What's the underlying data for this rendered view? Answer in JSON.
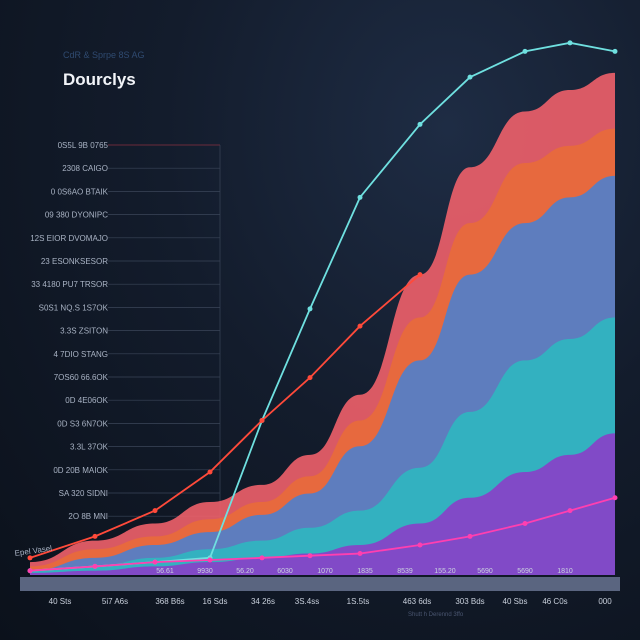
{
  "header": {
    "subtitle": "CdR & Sprpe 8S AG",
    "title": "Dourclys"
  },
  "watermark": "Shutt h Derennd 3ffo",
  "chart_data": {
    "type": "area",
    "title": "Dourclys",
    "subtitle": "CdR & Sprpe 8S AG",
    "xlabel": "",
    "ylabel": "",
    "corner_label": "Epel Vasel",
    "categories": [
      "40 Sts",
      "5i7 A6s",
      "368 B6s",
      "16 Sds",
      "34 26s",
      "3S.4ss",
      "1S.5ts",
      "463 6ds",
      "303 Bds",
      "40 Sbs",
      "46 C0s",
      "000"
    ],
    "y_tick_labels": [
      "0S5L 9B 0765",
      "2308 CAIGO",
      "0 0S6AO BTAIK",
      "09 380 DYONIPC",
      "12S EIOR DVOMAJO",
      "23 ESONKSESOR",
      "33 4180 PU7 TRSOR",
      "S0S1 NQ.S 1S7OK",
      "3.3S ZSITON",
      "4 7DIO STANG",
      "7OS60 66.6OK",
      "0D 4E06OK",
      "0D S3 6N7OK",
      "3.3L 37OK",
      "0D 20B MAIOK",
      "SA 320 SIDNI",
      "2O 8B MNI"
    ],
    "band_labels": [
      "56.61",
      "9930",
      "56.20",
      "6030",
      "1070",
      "1835",
      "8539",
      "155.20",
      "5690",
      "5690",
      "1810"
    ],
    "ylim": [
      0,
      120
    ],
    "grid": true,
    "legend": "none",
    "areas": [
      {
        "color": "#f0606a",
        "values": [
          3,
          8,
          12,
          17,
          21,
          28,
          42,
          70,
          95,
          108,
          113,
          117
        ]
      },
      {
        "color": "#e86a3a",
        "values": [
          2,
          6,
          9,
          13,
          17,
          23,
          36,
          60,
          82,
          96,
          100,
          104
        ]
      },
      {
        "color": "#4f7fcc",
        "values": [
          1,
          4,
          7,
          10,
          14,
          19,
          30,
          50,
          70,
          82,
          88,
          93
        ]
      },
      {
        "color": "#2fb7c0",
        "values": [
          1,
          2,
          4,
          6,
          8,
          11,
          15,
          25,
          38,
          50,
          55,
          60
        ]
      },
      {
        "color": "#8a3fc8",
        "values": [
          0.5,
          1,
          2,
          3,
          4,
          5,
          7,
          12,
          18,
          24,
          28,
          33
        ]
      }
    ],
    "lines": [
      {
        "color": "#6fe0e0",
        "values": [
          1,
          2,
          3,
          4,
          36,
          62,
          88,
          105,
          116,
          122,
          124,
          122
        ]
      },
      {
        "color": "#ff4a3a",
        "values": [
          4,
          9,
          15,
          24,
          36,
          46,
          58,
          70,
          null,
          null,
          null,
          null
        ]
      },
      {
        "color": "#ff3fb0",
        "values": [
          1,
          2,
          3,
          3.5,
          4,
          4.5,
          5,
          7,
          9,
          12,
          15,
          18
        ]
      }
    ]
  }
}
